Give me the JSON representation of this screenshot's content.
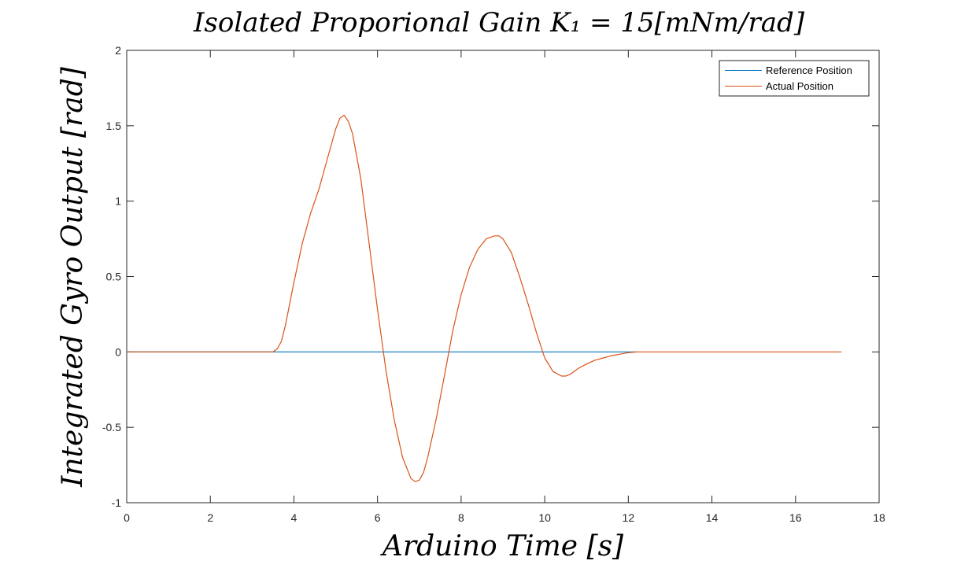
{
  "chart_data": {
    "type": "line",
    "title": "Isolated Proporional Gain K₁ = 15[mNm/rad]",
    "xlabel": "Arduino Time [s]",
    "ylabel": "Integrated Gyro Output [rad]",
    "xlim": [
      0,
      18
    ],
    "ylim": [
      -1,
      2
    ],
    "xticks": [
      0,
      2,
      4,
      6,
      8,
      10,
      12,
      14,
      16,
      18
    ],
    "yticks": [
      -1,
      -0.5,
      0,
      0.5,
      1,
      1.5,
      2
    ],
    "xtick_labels": [
      "0",
      "2",
      "4",
      "6",
      "8",
      "10",
      "12",
      "14",
      "16",
      "18"
    ],
    "ytick_labels": [
      "-1",
      "-0.5",
      "0",
      "0.5",
      "1",
      "1.5",
      "2"
    ],
    "grid": false,
    "legend_position": "top-right",
    "series": [
      {
        "name": "Reference Position",
        "color": "#0072BD",
        "x": [
          0,
          12.2
        ],
        "y": [
          0,
          0
        ]
      },
      {
        "name": "Actual Position",
        "color": "#D95319",
        "x": [
          0,
          3.5,
          3.6,
          3.7,
          3.8,
          3.9,
          4.0,
          4.2,
          4.4,
          4.6,
          4.8,
          5.0,
          5.1,
          5.2,
          5.3,
          5.4,
          5.6,
          5.8,
          6.0,
          6.2,
          6.4,
          6.6,
          6.8,
          6.9,
          7.0,
          7.1,
          7.2,
          7.4,
          7.6,
          7.8,
          8.0,
          8.2,
          8.4,
          8.6,
          8.8,
          8.9,
          9.0,
          9.2,
          9.4,
          9.6,
          9.8,
          10.0,
          10.2,
          10.4,
          10.5,
          10.6,
          10.8,
          11.0,
          11.2,
          11.4,
          11.6,
          11.8,
          12.0,
          12.2,
          14.0,
          16.0,
          17.1
        ],
        "y": [
          0,
          0,
          0.02,
          0.07,
          0.18,
          0.32,
          0.46,
          0.72,
          0.92,
          1.08,
          1.28,
          1.48,
          1.55,
          1.57,
          1.53,
          1.45,
          1.15,
          0.72,
          0.28,
          -0.12,
          -0.45,
          -0.7,
          -0.84,
          -0.86,
          -0.85,
          -0.8,
          -0.7,
          -0.45,
          -0.16,
          0.14,
          0.38,
          0.56,
          0.68,
          0.75,
          0.77,
          0.77,
          0.75,
          0.66,
          0.5,
          0.32,
          0.13,
          -0.04,
          -0.13,
          -0.16,
          -0.16,
          -0.15,
          -0.11,
          -0.08,
          -0.055,
          -0.04,
          -0.025,
          -0.015,
          -0.005,
          0,
          0,
          0,
          0
        ]
      }
    ]
  }
}
